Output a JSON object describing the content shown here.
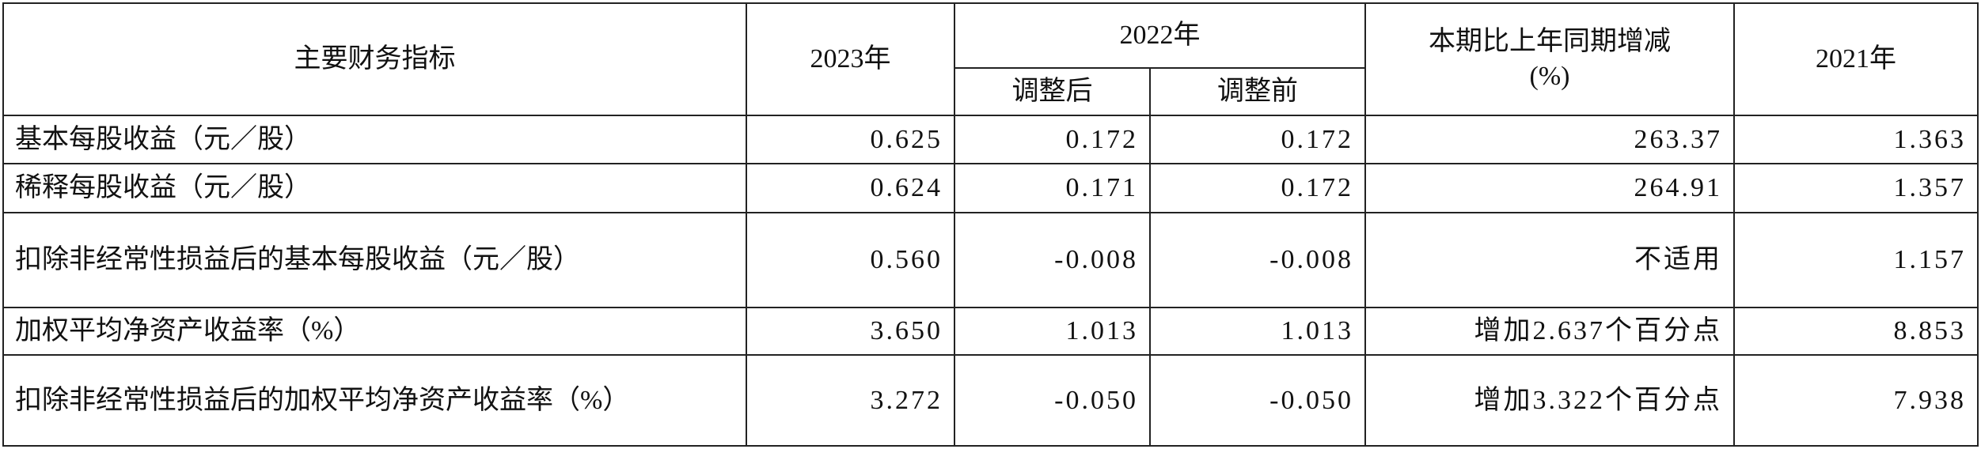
{
  "table": {
    "header": {
      "indicator": "主要财务指标",
      "y2023": "2023年",
      "y2022": "2022年",
      "adjusted_after": "调整后",
      "adjusted_before": "调整前",
      "change": [
        "本期比上年同期增减",
        "(%)"
      ],
      "y2021": "2021年"
    },
    "rows": [
      [
        "基本每股收益（元／股）",
        "0.625",
        "0.172",
        "0.172",
        "263.37",
        "1.363"
      ],
      [
        "稀释每股收益（元／股）",
        "0.624",
        "0.171",
        "0.172",
        "264.91",
        "1.357"
      ],
      [
        "扣除非经常性损益后的基本每股收益（元／股）",
        "0.560",
        "-0.008",
        "-0.008",
        "不适用",
        "1.157"
      ],
      [
        "加权平均净资产收益率（%）",
        "3.650",
        "1.013",
        "1.013",
        "增加2.637个百分点",
        "8.853"
      ],
      [
        "扣除非经常性损益后的加权平均净资产收益率（%）",
        "3.272",
        "-0.050",
        "-0.050",
        "增加3.322个百分点",
        "7.938"
      ]
    ]
  }
}
